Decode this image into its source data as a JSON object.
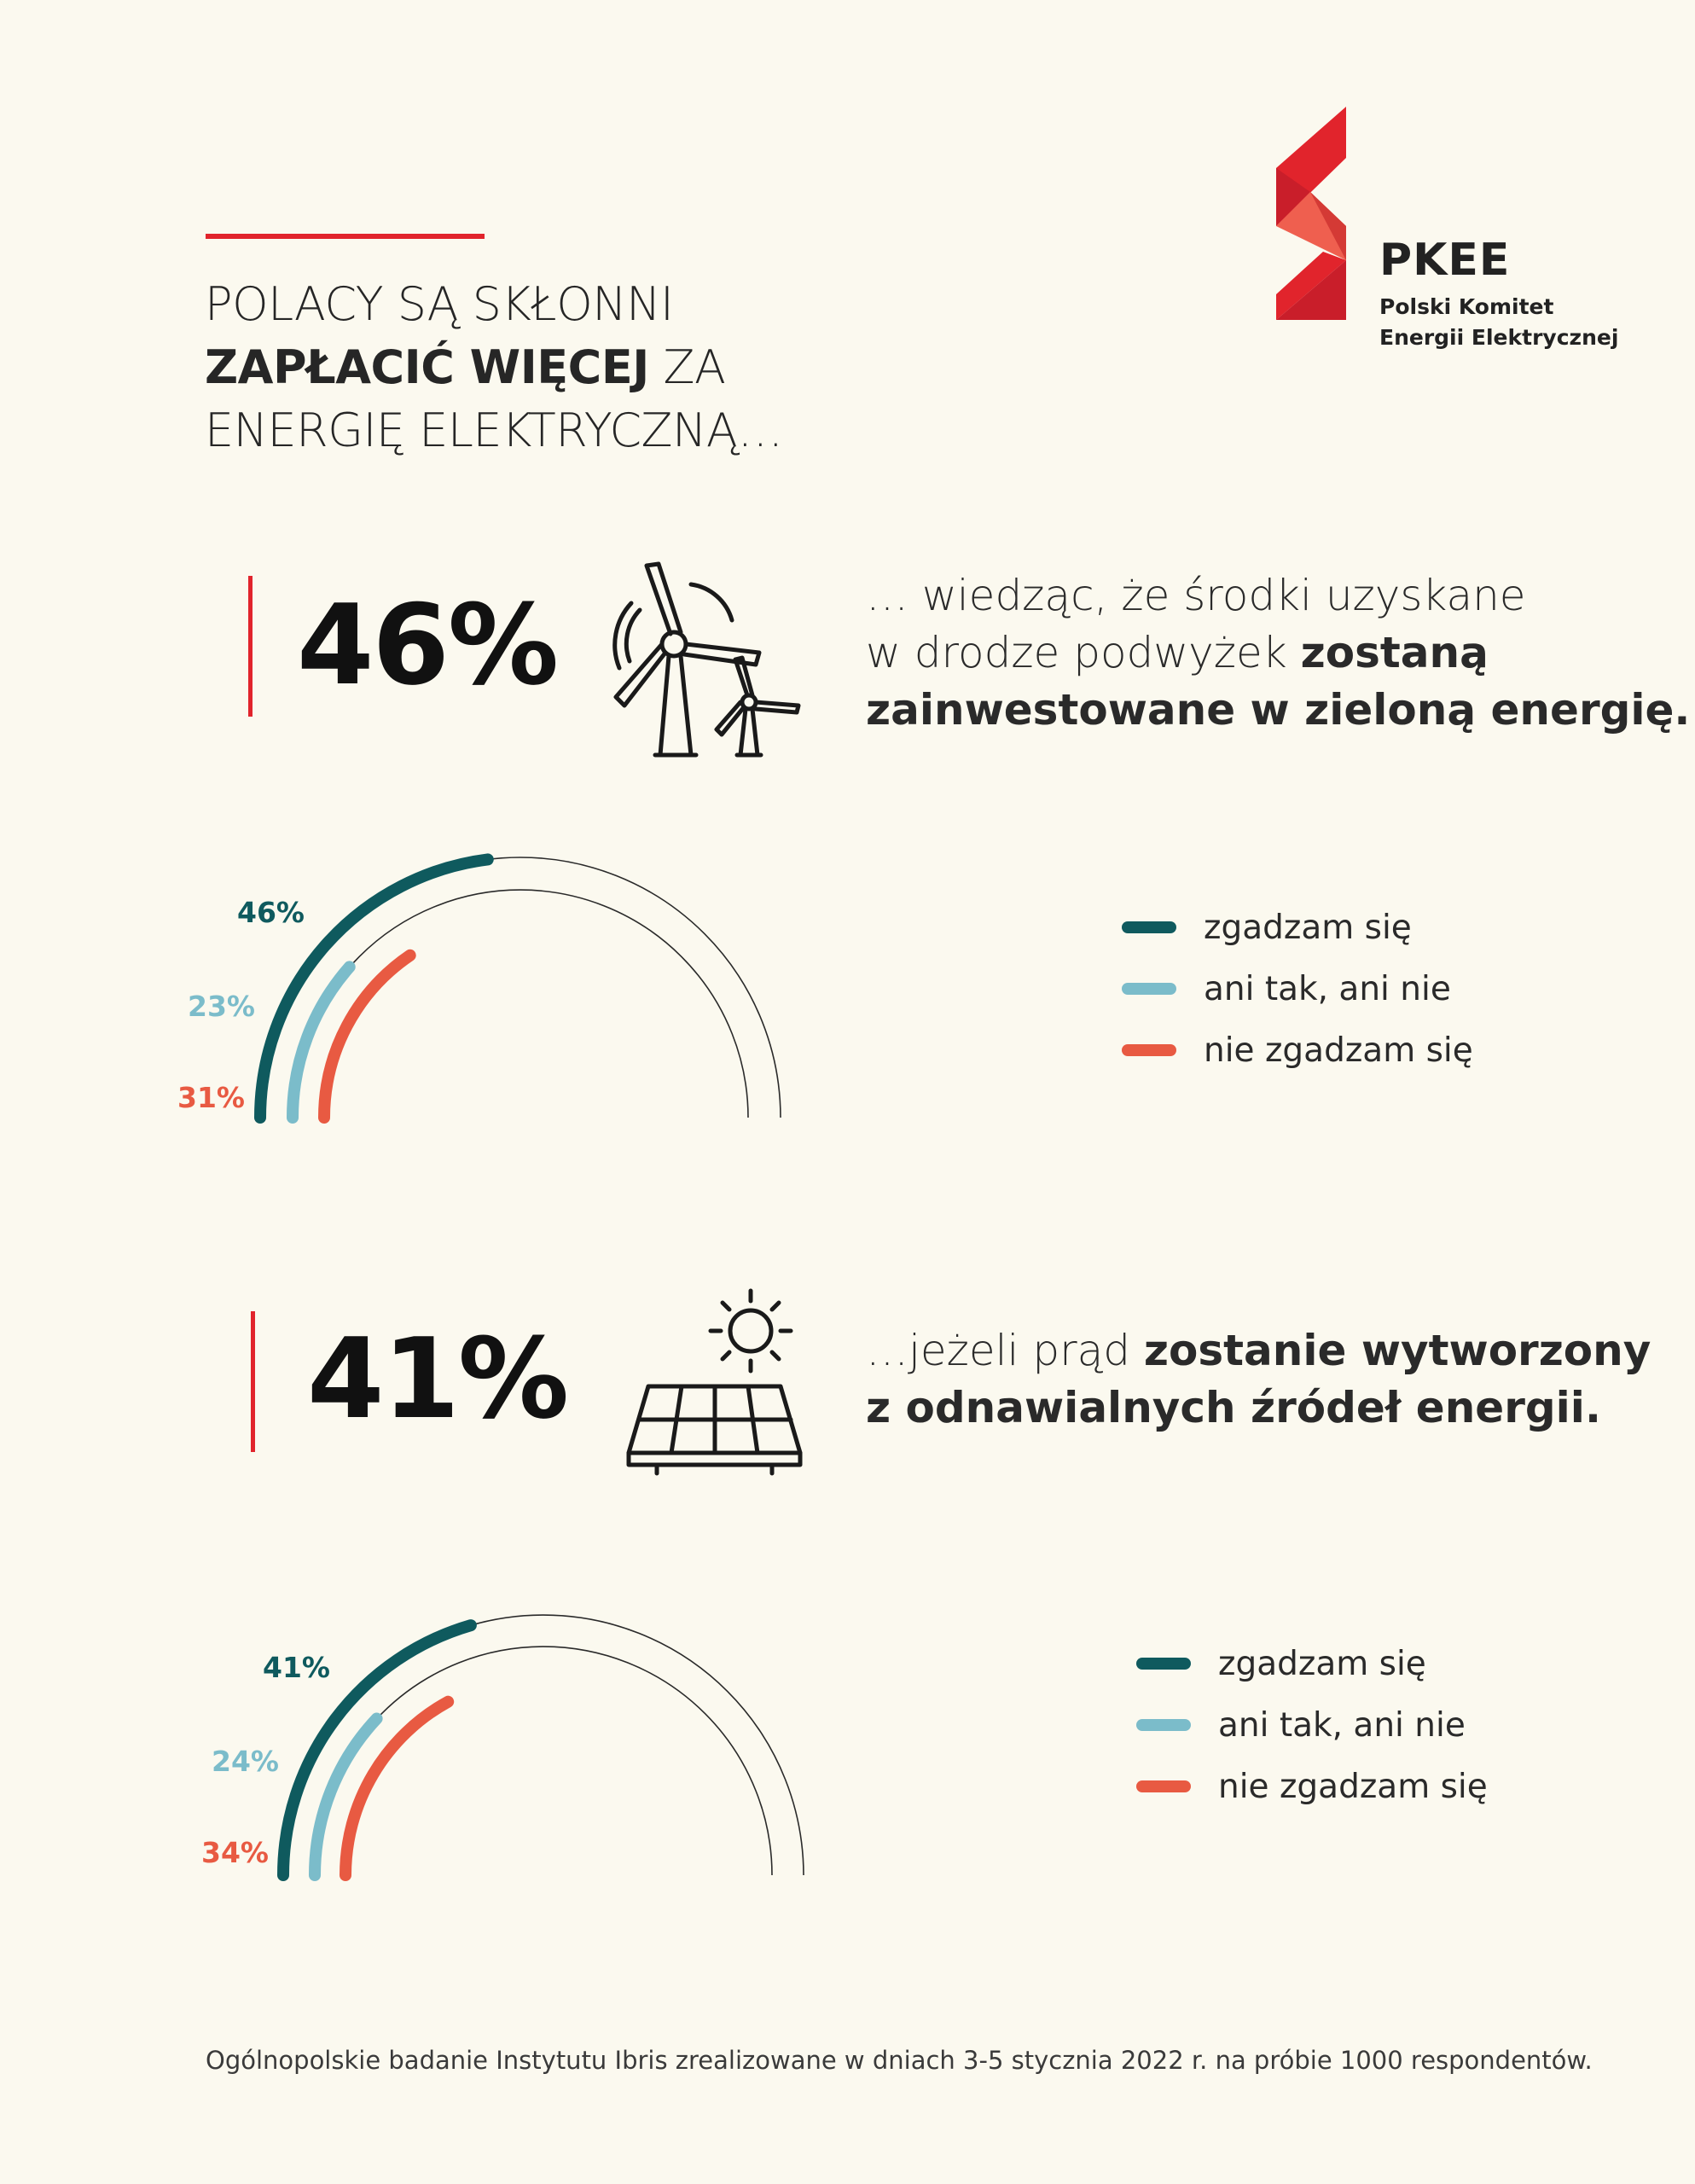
{
  "header": {
    "title_line1": "POLACY SĄ SKŁONNI",
    "title_line2_bold": "ZAPŁACIĆ WIĘCEJ",
    "title_line2_rest": " ZA",
    "title_line3": "ENERGIĘ ELEKTRYCZNĄ…"
  },
  "logo": {
    "name": "PKEE",
    "subtitle_line1": "Polski Komitet",
    "subtitle_line2": "Energii Elektrycznej",
    "colors": [
      "#e1242c",
      "#c91e2a",
      "#ef5f4f"
    ]
  },
  "sections": [
    {
      "stat_value": "46%",
      "icon": "wind-turbine-icon",
      "text_line1": "… wiedząc, że środki uzyskane",
      "text_line2_normal": "w drodze podwyżek ",
      "text_line2_bold": "zostaną",
      "text_line3_bold": "zainwestowane w zieloną energię."
    },
    {
      "stat_value": "41%",
      "icon": "solar-panel-icon",
      "text_line1_normal": "…jeżeli prąd ",
      "text_line1_bold": "zostanie wytworzony",
      "text_line2_bold": "z odnawialnych źródeł energii."
    }
  ],
  "legend": {
    "agree": "zgadzam się",
    "neutral": "ani tak, ani nie",
    "disagree": "nie zgadzam się"
  },
  "chart_data": [
    {
      "type": "radial-bar",
      "categories": [
        "zgadzam się",
        "ani tak, ani nie",
        "nie zgadzam się"
      ],
      "values": [
        46,
        23,
        31
      ],
      "labels": [
        "46%",
        "23%",
        "31%"
      ],
      "colors": [
        "#0f5a5e",
        "#7bbcca",
        "#e85a42"
      ]
    },
    {
      "type": "radial-bar",
      "categories": [
        "zgadzam się",
        "ani tak, ani nie",
        "nie zgadzam się"
      ],
      "values": [
        41,
        24,
        34
      ],
      "labels": [
        "41%",
        "24%",
        "34%"
      ],
      "colors": [
        "#0f5a5e",
        "#7bbcca",
        "#e85a42"
      ]
    }
  ],
  "footnote": "Ogólnopolskie badanie Instytutu Ibris zrealizowane w dniach 3-5 stycznia 2022 r. na próbie 1000 respondentów."
}
